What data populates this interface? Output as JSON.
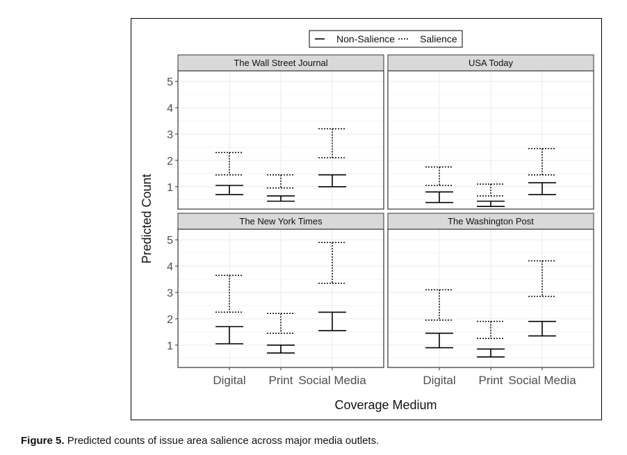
{
  "caption": {
    "label": "Figure 5.",
    "text": "Predicted counts of issue area salience across major media outlets."
  },
  "chart_data": {
    "type": "errorbar",
    "xlabel": "Coverage Medium",
    "ylabel": "Predicted Count",
    "categories": [
      "Digital",
      "Print",
      "Social Media"
    ],
    "y_ticks": [
      1,
      2,
      3,
      4,
      5
    ],
    "ylim": [
      0.15,
      5.4
    ],
    "grid": true,
    "legend": {
      "placement": "top",
      "entries": [
        {
          "name": "Non-Salience",
          "line": "solid"
        },
        {
          "name": "Salience",
          "line": "dotted"
        }
      ]
    },
    "panels": [
      {
        "title": "The Wall Street Journal",
        "series": [
          {
            "name": "Non-Salience",
            "lower": [
              0.7,
              0.45,
              1.0
            ],
            "upper": [
              1.05,
              0.65,
              1.45
            ]
          },
          {
            "name": "Salience",
            "lower": [
              1.45,
              0.95,
              2.1
            ],
            "upper": [
              2.3,
              1.45,
              3.2
            ]
          }
        ]
      },
      {
        "title": "USA Today",
        "series": [
          {
            "name": "Non-Salience",
            "lower": [
              0.4,
              0.25,
              0.7
            ],
            "upper": [
              0.8,
              0.45,
              1.15
            ]
          },
          {
            "name": "Salience",
            "lower": [
              1.05,
              0.65,
              1.45
            ],
            "upper": [
              1.75,
              1.1,
              2.45
            ]
          }
        ]
      },
      {
        "title": "The New York Times",
        "series": [
          {
            "name": "Non-Salience",
            "lower": [
              1.05,
              0.7,
              1.55
            ],
            "upper": [
              1.7,
              1.0,
              2.25
            ]
          },
          {
            "name": "Salience",
            "lower": [
              2.25,
              1.45,
              3.35
            ],
            "upper": [
              3.65,
              2.2,
              4.9
            ]
          }
        ]
      },
      {
        "title": "The Washington Post",
        "series": [
          {
            "name": "Non-Salience",
            "lower": [
              0.9,
              0.55,
              1.35
            ],
            "upper": [
              1.45,
              0.85,
              1.9
            ]
          },
          {
            "name": "Salience",
            "lower": [
              1.95,
              1.25,
              2.85
            ],
            "upper": [
              3.1,
              1.9,
              4.2
            ]
          }
        ]
      }
    ]
  }
}
